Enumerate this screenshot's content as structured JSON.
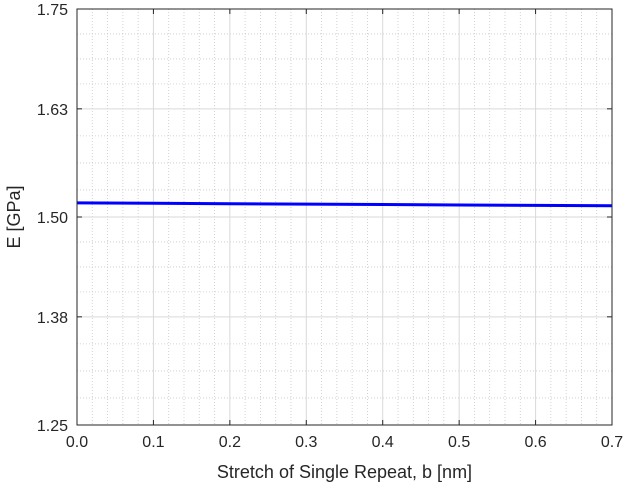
{
  "chart_data": {
    "type": "line",
    "title": "",
    "xlabel": "Stretch of Single Repeat, b [nm]",
    "ylabel": "E [GPa]",
    "xlim": [
      0.0,
      0.7
    ],
    "ylim": [
      1.25,
      1.75
    ],
    "xticks": [
      "0.0",
      "0.1",
      "0.2",
      "0.3",
      "0.4",
      "0.5",
      "0.6",
      "0.7"
    ],
    "yticks": [
      "1.25",
      "1.38",
      "1.50",
      "1.63",
      "1.75"
    ],
    "grid": true,
    "minor_grid": true,
    "series": [
      {
        "color": "#0000ff",
        "x": [
          0.0,
          0.1,
          0.2,
          0.3,
          0.4,
          0.5,
          0.6,
          0.7
        ],
        "y": [
          1.517,
          1.5165,
          1.516,
          1.5155,
          1.515,
          1.5145,
          1.514,
          1.5135
        ]
      }
    ]
  }
}
